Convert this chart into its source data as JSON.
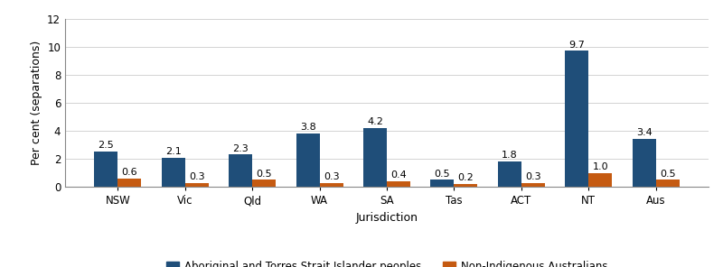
{
  "jurisdictions": [
    "NSW",
    "Vic",
    "Qld",
    "WA",
    "SA",
    "Tas",
    "ACT",
    "NT",
    "Aus"
  ],
  "indigenous_values": [
    2.5,
    2.1,
    2.3,
    3.8,
    4.2,
    0.5,
    1.8,
    9.7,
    3.4
  ],
  "non_indigenous_values": [
    0.6,
    0.3,
    0.5,
    0.3,
    0.4,
    0.2,
    0.3,
    1.0,
    0.5
  ],
  "indigenous_color": "#1F4E79",
  "non_indigenous_color": "#C55A11",
  "ylabel": "Per cent (separations)",
  "xlabel": "Jurisdiction",
  "ylim": [
    0,
    12
  ],
  "yticks": [
    0,
    2,
    4,
    6,
    8,
    10,
    12
  ],
  "legend_indigenous": "Aboriginal and Torres Strait Islander peoples",
  "legend_non_indigenous": "Non-Indigenous Australians",
  "bar_width": 0.35,
  "label_fontsize": 8,
  "axis_fontsize": 9,
  "legend_fontsize": 8.5,
  "tick_fontsize": 8.5
}
